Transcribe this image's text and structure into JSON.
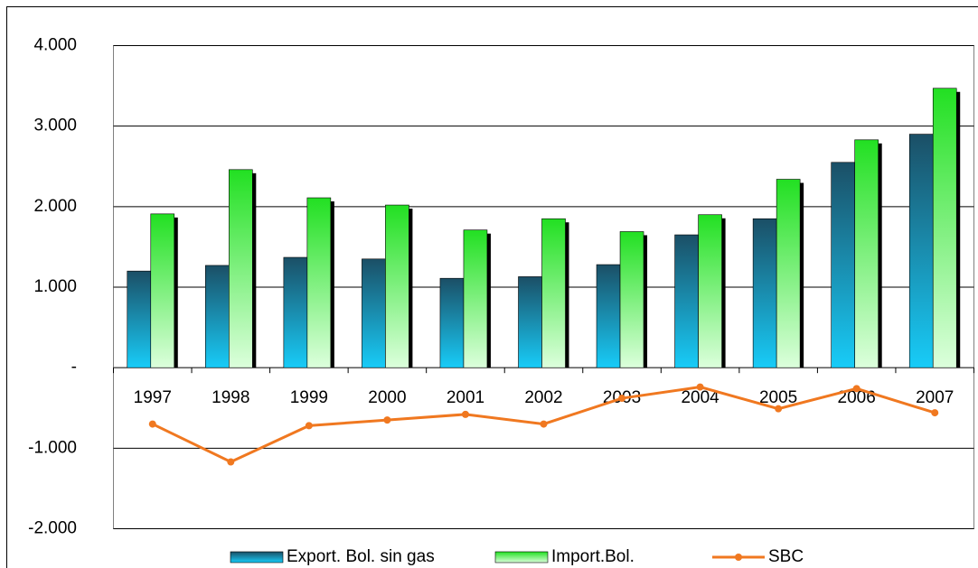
{
  "chart_data": {
    "type": "bar",
    "categories": [
      "1997",
      "1998",
      "1999",
      "2000",
      "2001",
      "2002",
      "2003",
      "2004",
      "2005",
      "2006",
      "2007"
    ],
    "series": [
      {
        "name": "Export. Bol. sin gas",
        "color": "#1b4f66",
        "type": "bar",
        "values": [
          1200,
          1270,
          1370,
          1350,
          1110,
          1130,
          1280,
          1650,
          1850,
          2550,
          2900
        ]
      },
      {
        "name": "Import.Bol.",
        "color": "#22e022",
        "type": "bar",
        "values": [
          1910,
          2460,
          2110,
          2020,
          1710,
          1850,
          1690,
          1900,
          2340,
          2830,
          3470
        ]
      },
      {
        "name": "SBC",
        "color": "#f07820",
        "type": "line",
        "values": [
          -700,
          -1170,
          -720,
          -650,
          -580,
          -700,
          -380,
          -240,
          -510,
          -260,
          -560
        ]
      }
    ],
    "ylim": [
      -2000,
      4000
    ],
    "yticks": [
      {
        "value": -2000,
        "label": "-2.000"
      },
      {
        "value": -1000,
        "label": "-1.000"
      },
      {
        "value": 0,
        "label": "-"
      },
      {
        "value": 1000,
        "label": "1.000"
      },
      {
        "value": 2000,
        "label": "2.000"
      },
      {
        "value": 3000,
        "label": "3.000"
      },
      {
        "value": 4000,
        "label": "4.000"
      }
    ],
    "grid": true
  }
}
